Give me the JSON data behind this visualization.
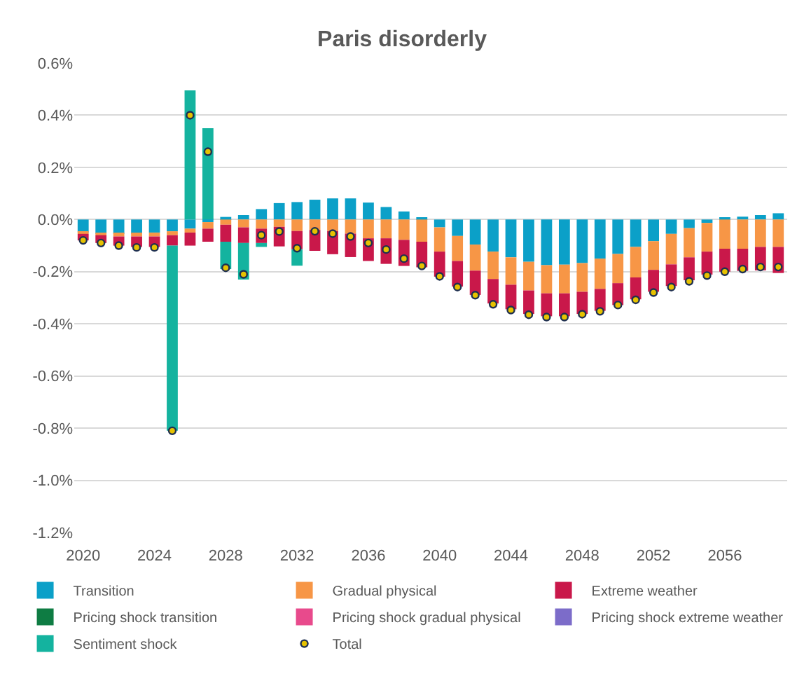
{
  "chart_data": {
    "type": "bar",
    "title": "Paris disorderly",
    "stacked": true,
    "x": [
      2020,
      2021,
      2022,
      2023,
      2024,
      2025,
      2026,
      2027,
      2028,
      2029,
      2030,
      2031,
      2032,
      2033,
      2034,
      2035,
      2036,
      2037,
      2038,
      2039,
      2040,
      2041,
      2042,
      2043,
      2044,
      2045,
      2046,
      2047,
      2048,
      2049,
      2050,
      2051,
      2052,
      2053,
      2054,
      2055,
      2056,
      2057,
      2058,
      2059
    ],
    "xlim": [
      2019.5,
      2059.5
    ],
    "xticks": [
      2020,
      2024,
      2028,
      2032,
      2036,
      2040,
      2044,
      2048,
      2052,
      2056
    ],
    "ylim": [
      -1.2,
      0.6
    ],
    "yticks": [
      {
        "value": -1.2,
        "label": "-1.2%"
      },
      {
        "value": -1.0,
        "label": "-1.0%"
      },
      {
        "value": -0.8,
        "label": "-0.8%"
      },
      {
        "value": -0.6,
        "label": "-0.6%"
      },
      {
        "value": -0.4,
        "label": "-0.4%"
      },
      {
        "value": -0.2,
        "label": "-0.2%"
      },
      {
        "value": 0,
        "label": "0.0%"
      },
      {
        "value": 0.2,
        "label": "0.2%"
      },
      {
        "value": 0.4,
        "label": "0.4%"
      },
      {
        "value": 0.6,
        "label": "0.6%"
      }
    ],
    "grid": "y",
    "legend": "bottom",
    "series": [
      {
        "name": "Transition",
        "color": "#0ba0c8",
        "values": [
          -0.05,
          -0.055,
          -0.055,
          -0.055,
          -0.05,
          -0.045,
          -0.035,
          -0.01,
          0.01,
          0.017,
          0.04,
          0.063,
          0.067,
          0.076,
          0.081,
          0.081,
          0.065,
          0.048,
          0.031,
          0.005,
          -0.03,
          -0.063,
          -0.096,
          -0.123,
          -0.145,
          -0.162,
          -0.175,
          -0.173,
          -0.167,
          -0.15,
          -0.132,
          -0.105,
          -0.083,
          -0.055,
          -0.033,
          -0.013,
          0.006,
          0.011,
          0.017,
          0.024
        ]
      },
      {
        "name": "Gradual physical",
        "color": "#f79646",
        "values": [
          -0.005,
          -0.005,
          -0.01,
          -0.01,
          -0.015,
          -0.015,
          -0.015,
          -0.025,
          -0.02,
          -0.03,
          -0.035,
          -0.028,
          -0.044,
          -0.04,
          -0.044,
          -0.054,
          -0.072,
          -0.072,
          -0.078,
          -0.085,
          -0.093,
          -0.096,
          -0.1,
          -0.105,
          -0.105,
          -0.11,
          -0.108,
          -0.11,
          -0.11,
          -0.116,
          -0.112,
          -0.117,
          -0.11,
          -0.117,
          -0.112,
          -0.11,
          -0.112,
          -0.112,
          -0.105,
          -0.105
        ]
      },
      {
        "name": "Extreme weather",
        "color": "#c9184a",
        "values": [
          -0.025,
          -0.03,
          -0.035,
          -0.04,
          -0.04,
          -0.04,
          -0.05,
          -0.05,
          -0.065,
          -0.06,
          -0.055,
          -0.075,
          -0.07,
          -0.08,
          -0.089,
          -0.09,
          -0.087,
          -0.098,
          -0.1,
          -0.098,
          -0.096,
          -0.098,
          -0.093,
          -0.094,
          -0.094,
          -0.09,
          -0.088,
          -0.088,
          -0.085,
          -0.084,
          -0.084,
          -0.084,
          -0.084,
          -0.083,
          -0.088,
          -0.088,
          -0.088,
          -0.085,
          -0.09,
          -0.1
        ]
      },
      {
        "name": "Pricing shock transition",
        "color": "#0e7c43",
        "values": [
          0,
          0,
          0,
          0,
          0,
          0,
          0,
          0,
          0,
          0,
          0,
          0,
          0,
          0,
          0,
          0,
          0,
          0,
          0,
          0,
          0,
          0,
          0,
          0,
          0,
          0,
          0,
          0,
          0,
          0,
          0,
          0,
          0,
          0,
          0,
          0,
          0,
          0,
          0,
          0
        ]
      },
      {
        "name": "Pricing shock gradual physical",
        "color": "#e84a8c",
        "values": [
          0,
          0,
          0,
          0,
          0,
          0,
          0,
          0,
          0,
          0,
          0,
          0,
          0,
          0,
          0,
          0,
          0,
          0,
          0,
          0,
          0,
          0,
          0,
          0,
          0,
          0,
          0,
          0,
          0,
          0,
          0,
          0,
          0,
          0,
          0,
          0,
          0,
          0,
          0,
          0
        ]
      },
      {
        "name": "Pricing shock extreme weather",
        "color": "#7c6cc9",
        "values": [
          0,
          0,
          0,
          0,
          0,
          0,
          0,
          0,
          0,
          0,
          0,
          0,
          0,
          0,
          0,
          0,
          0,
          0,
          0,
          0,
          0,
          0,
          0,
          0,
          0,
          0,
          0,
          0,
          0,
          0,
          0,
          0,
          0,
          0,
          0,
          0,
          0,
          0,
          0,
          0
        ]
      },
      {
        "name": "Sentiment shock",
        "color": "#14b39f",
        "values": [
          0,
          0,
          0,
          0,
          0,
          -0.71,
          0.495,
          0.35,
          -0.105,
          -0.14,
          -0.015,
          0,
          -0.063,
          0,
          0,
          0,
          0,
          0,
          0,
          0,
          0,
          0,
          0,
          0,
          0,
          0,
          0,
          0,
          0,
          0,
          0,
          0,
          0,
          0,
          0,
          0,
          0,
          0,
          0,
          0
        ]
      },
      {
        "name": "Total",
        "type": "scatter",
        "marker": "circle",
        "color": "#e6c200",
        "values": [
          -0.08,
          -0.09,
          -0.1,
          -0.107,
          -0.107,
          -0.81,
          0.4,
          0.26,
          -0.185,
          -0.21,
          -0.06,
          -0.046,
          -0.11,
          -0.045,
          -0.054,
          -0.065,
          -0.09,
          -0.115,
          -0.15,
          -0.178,
          -0.218,
          -0.259,
          -0.29,
          -0.325,
          -0.347,
          -0.365,
          -0.374,
          -0.374,
          -0.363,
          -0.352,
          -0.328,
          -0.308,
          -0.28,
          -0.259,
          -0.237,
          -0.215,
          -0.2,
          -0.19,
          -0.182,
          -0.182
        ]
      }
    ]
  }
}
